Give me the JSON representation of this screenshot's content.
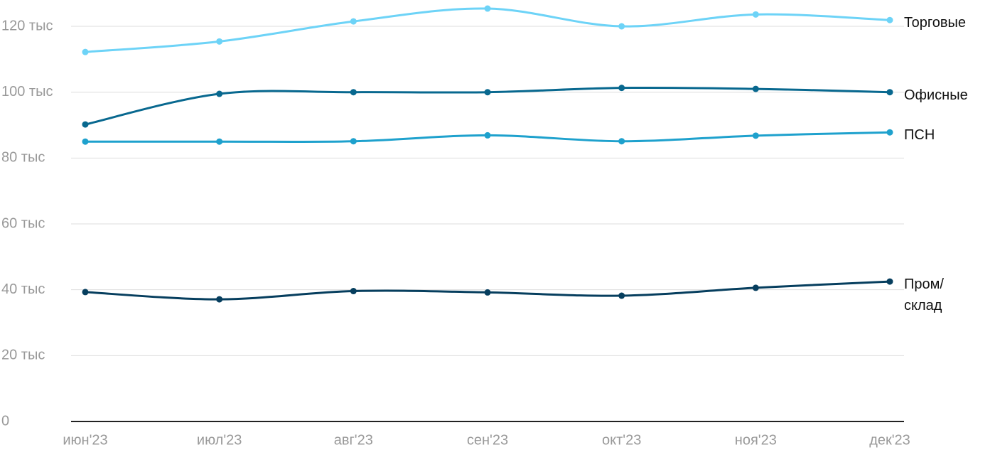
{
  "chart_data": {
    "type": "line",
    "categories": [
      "июн'23",
      "июл'23",
      "авг'23",
      "сен'23",
      "окт'23",
      "ноя'23",
      "дек'23"
    ],
    "series": [
      {
        "name": "Торговые",
        "color": "#6dd3f7",
        "values": [
          112.2,
          115.4,
          121.5,
          125.4,
          120,
          123.6,
          121.9
        ]
      },
      {
        "name": "Офисные",
        "color": "#08688f",
        "values": [
          90.2,
          99.5,
          100,
          100,
          101.3,
          101,
          100
        ]
      },
      {
        "name": "ПСН",
        "color": "#1ea1cd",
        "values": [
          85,
          85,
          85.1,
          86.9,
          85.1,
          86.8,
          87.8
        ]
      },
      {
        "name": "Пром/ склад",
        "color": "#063e5e",
        "values": [
          39.3,
          37.1,
          39.6,
          39.2,
          38.2,
          40.6,
          42.5
        ]
      }
    ],
    "ylim": [
      0,
      126
    ],
    "yticks": [
      0,
      {
        "value": 20,
        "label": "20 тыс"
      },
      {
        "value": 40,
        "label": "40 тыс"
      },
      {
        "value": 60,
        "label": "60 тыс"
      },
      {
        "value": 80,
        "label": "80 тыс"
      },
      {
        "value": 100,
        "label": "100 тыс"
      },
      {
        "value": 120,
        "label": "120 тыс"
      }
    ],
    "grid": true
  }
}
